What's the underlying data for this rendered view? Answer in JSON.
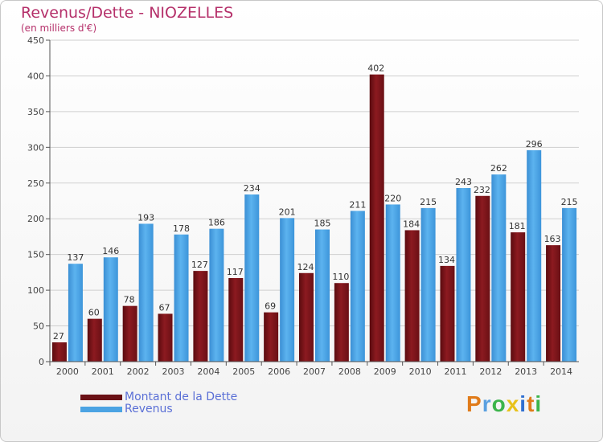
{
  "title": "Revenus/Dette - NIOZELLES",
  "subtitle": "(en milliers d'€)",
  "legend": {
    "dette_label": "Montant de la Dette",
    "revenus_label": "Revenus"
  },
  "logo": {
    "text": "Proxiti",
    "letters": [
      "P",
      "r",
      "o",
      "x",
      "i",
      "t",
      "i"
    ],
    "colors": [
      "#e07b1a",
      "#5aa0e0",
      "#3cb44b",
      "#e8c21a",
      "#2f6fd1",
      "#e07b1a",
      "#3cb44b"
    ]
  },
  "colors": {
    "dette": "#7a1418",
    "revenus": "#4ba3e3",
    "title": "#b5306a",
    "grid": "#cfcfcf",
    "axis": "#555555"
  },
  "chart_data": {
    "type": "bar",
    "title": "Revenus/Dette - NIOZELLES",
    "ylabel": "(en milliers d'€)",
    "xlabel": "",
    "ylim": [
      0,
      450
    ],
    "yticks": [
      0,
      50,
      100,
      150,
      200,
      250,
      300,
      350,
      400,
      450
    ],
    "grid": true,
    "legend_position": "bottom-left",
    "categories": [
      "2000",
      "2001",
      "2002",
      "2003",
      "2004",
      "2005",
      "2006",
      "2007",
      "2008",
      "2009",
      "2010",
      "2011",
      "2012",
      "2013",
      "2014"
    ],
    "series": [
      {
        "name": "Montant de la Dette",
        "values": [
          27,
          60,
          78,
          67,
          127,
          117,
          69,
          124,
          110,
          402,
          184,
          134,
          232,
          181,
          163
        ]
      },
      {
        "name": "Revenus",
        "values": [
          137,
          146,
          193,
          178,
          186,
          234,
          201,
          185,
          211,
          220,
          215,
          243,
          262,
          296,
          215
        ]
      }
    ]
  }
}
